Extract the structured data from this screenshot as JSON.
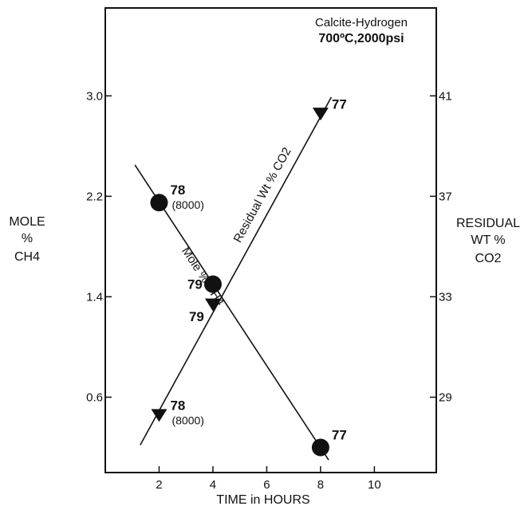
{
  "chart_data": {
    "type": "scatter",
    "title_line1": "Calcite-Hydrogen",
    "title_line2": "700ºC,2000psi",
    "xlabel": "TIME in HOURS",
    "ylabel_left": [
      "MOLE",
      "%",
      "CH4"
    ],
    "ylabel_right": [
      "RESIDUAL",
      "WT %",
      "CO2"
    ],
    "x_ticks": [
      "2",
      "4",
      "6",
      "8",
      "10"
    ],
    "y_left_ticks": [
      "0.6",
      "1.4",
      "2.2",
      "3.0"
    ],
    "y_right_ticks": [
      "29",
      "33",
      "37",
      "41"
    ],
    "xlim": [
      0,
      12.3
    ],
    "ylim_left": [
      0.0,
      3.7
    ],
    "ylim_right": [
      26,
      44.5
    ],
    "series": [
      {
        "name": "Mole % CH4",
        "marker": "circle",
        "axis": "left",
        "points": [
          {
            "x": 2,
            "y": 2.15,
            "label": "78",
            "sublabel": "(8000)"
          },
          {
            "x": 4,
            "y": 1.5,
            "label": "79",
            "sublabel": ""
          },
          {
            "x": 8,
            "y": 0.2,
            "label": "77",
            "sublabel": ""
          }
        ],
        "fit_line": {
          "x": [
            1.1,
            8.3
          ],
          "y": [
            2.45,
            0.1
          ]
        },
        "line_label": "Mole % CH4"
      },
      {
        "name": "Residual Wt % CO2",
        "marker": "triangle-down",
        "axis": "right",
        "points": [
          {
            "x": 2,
            "y": 28.3,
            "label": "78",
            "sublabel": "(8000)"
          },
          {
            "x": 4,
            "y": 32.7,
            "label": "79",
            "sublabel": ""
          },
          {
            "x": 8,
            "y": 40.3,
            "label": "77",
            "sublabel": ""
          }
        ],
        "fit_line": {
          "x": [
            1.3,
            8.4
          ],
          "y": [
            27.1,
            40.95
          ]
        },
        "line_label": "Residual Wt % CO2"
      }
    ],
    "grid": false,
    "legend": "none"
  }
}
